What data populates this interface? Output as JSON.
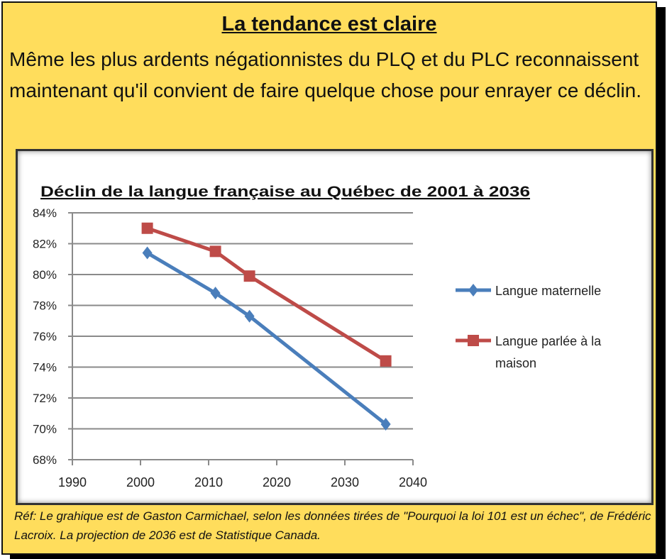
{
  "heading": "La tendance est claire",
  "intro": "Même les plus ardents négationnistes du PLQ et du PLC reconnaissent maintenant qu'il convient de faire quelque chose pour enrayer ce déclin.",
  "reference": "Réf: Le grahique est de Gaston Carmichael, selon les données tirées de \"Pourquoi la loi 101 est un échec\", de Frédéric Lacroix.  La projection de 2036 est de Statistique Canada.",
  "chart_data": {
    "type": "line",
    "title": "Déclin de la langue française au Québec de 2001 à 2036",
    "xlabel": "",
    "ylabel": "",
    "xlim": [
      1990,
      2040
    ],
    "ylim": [
      68,
      84
    ],
    "xticks": [
      1990,
      2000,
      2010,
      2020,
      2030,
      2040
    ],
    "yticks": [
      68,
      70,
      72,
      74,
      76,
      78,
      80,
      82,
      84
    ],
    "ytick_suffix": "%",
    "grid": "horizontal",
    "legend_position": "right",
    "series": [
      {
        "name": "Langue maternelle",
        "color": "#4A7EBB",
        "marker": "diamond",
        "x": [
          2001,
          2011,
          2016,
          2036
        ],
        "y": [
          81.4,
          78.8,
          77.3,
          70.3
        ]
      },
      {
        "name": "Langue parlée à la maison",
        "legend_lines": [
          "Langue parlée à la",
          "maison"
        ],
        "color": "#BE4B48",
        "marker": "square",
        "x": [
          2001,
          2011,
          2016,
          2036
        ],
        "y": [
          83.0,
          81.5,
          79.9,
          74.4
        ]
      }
    ]
  }
}
